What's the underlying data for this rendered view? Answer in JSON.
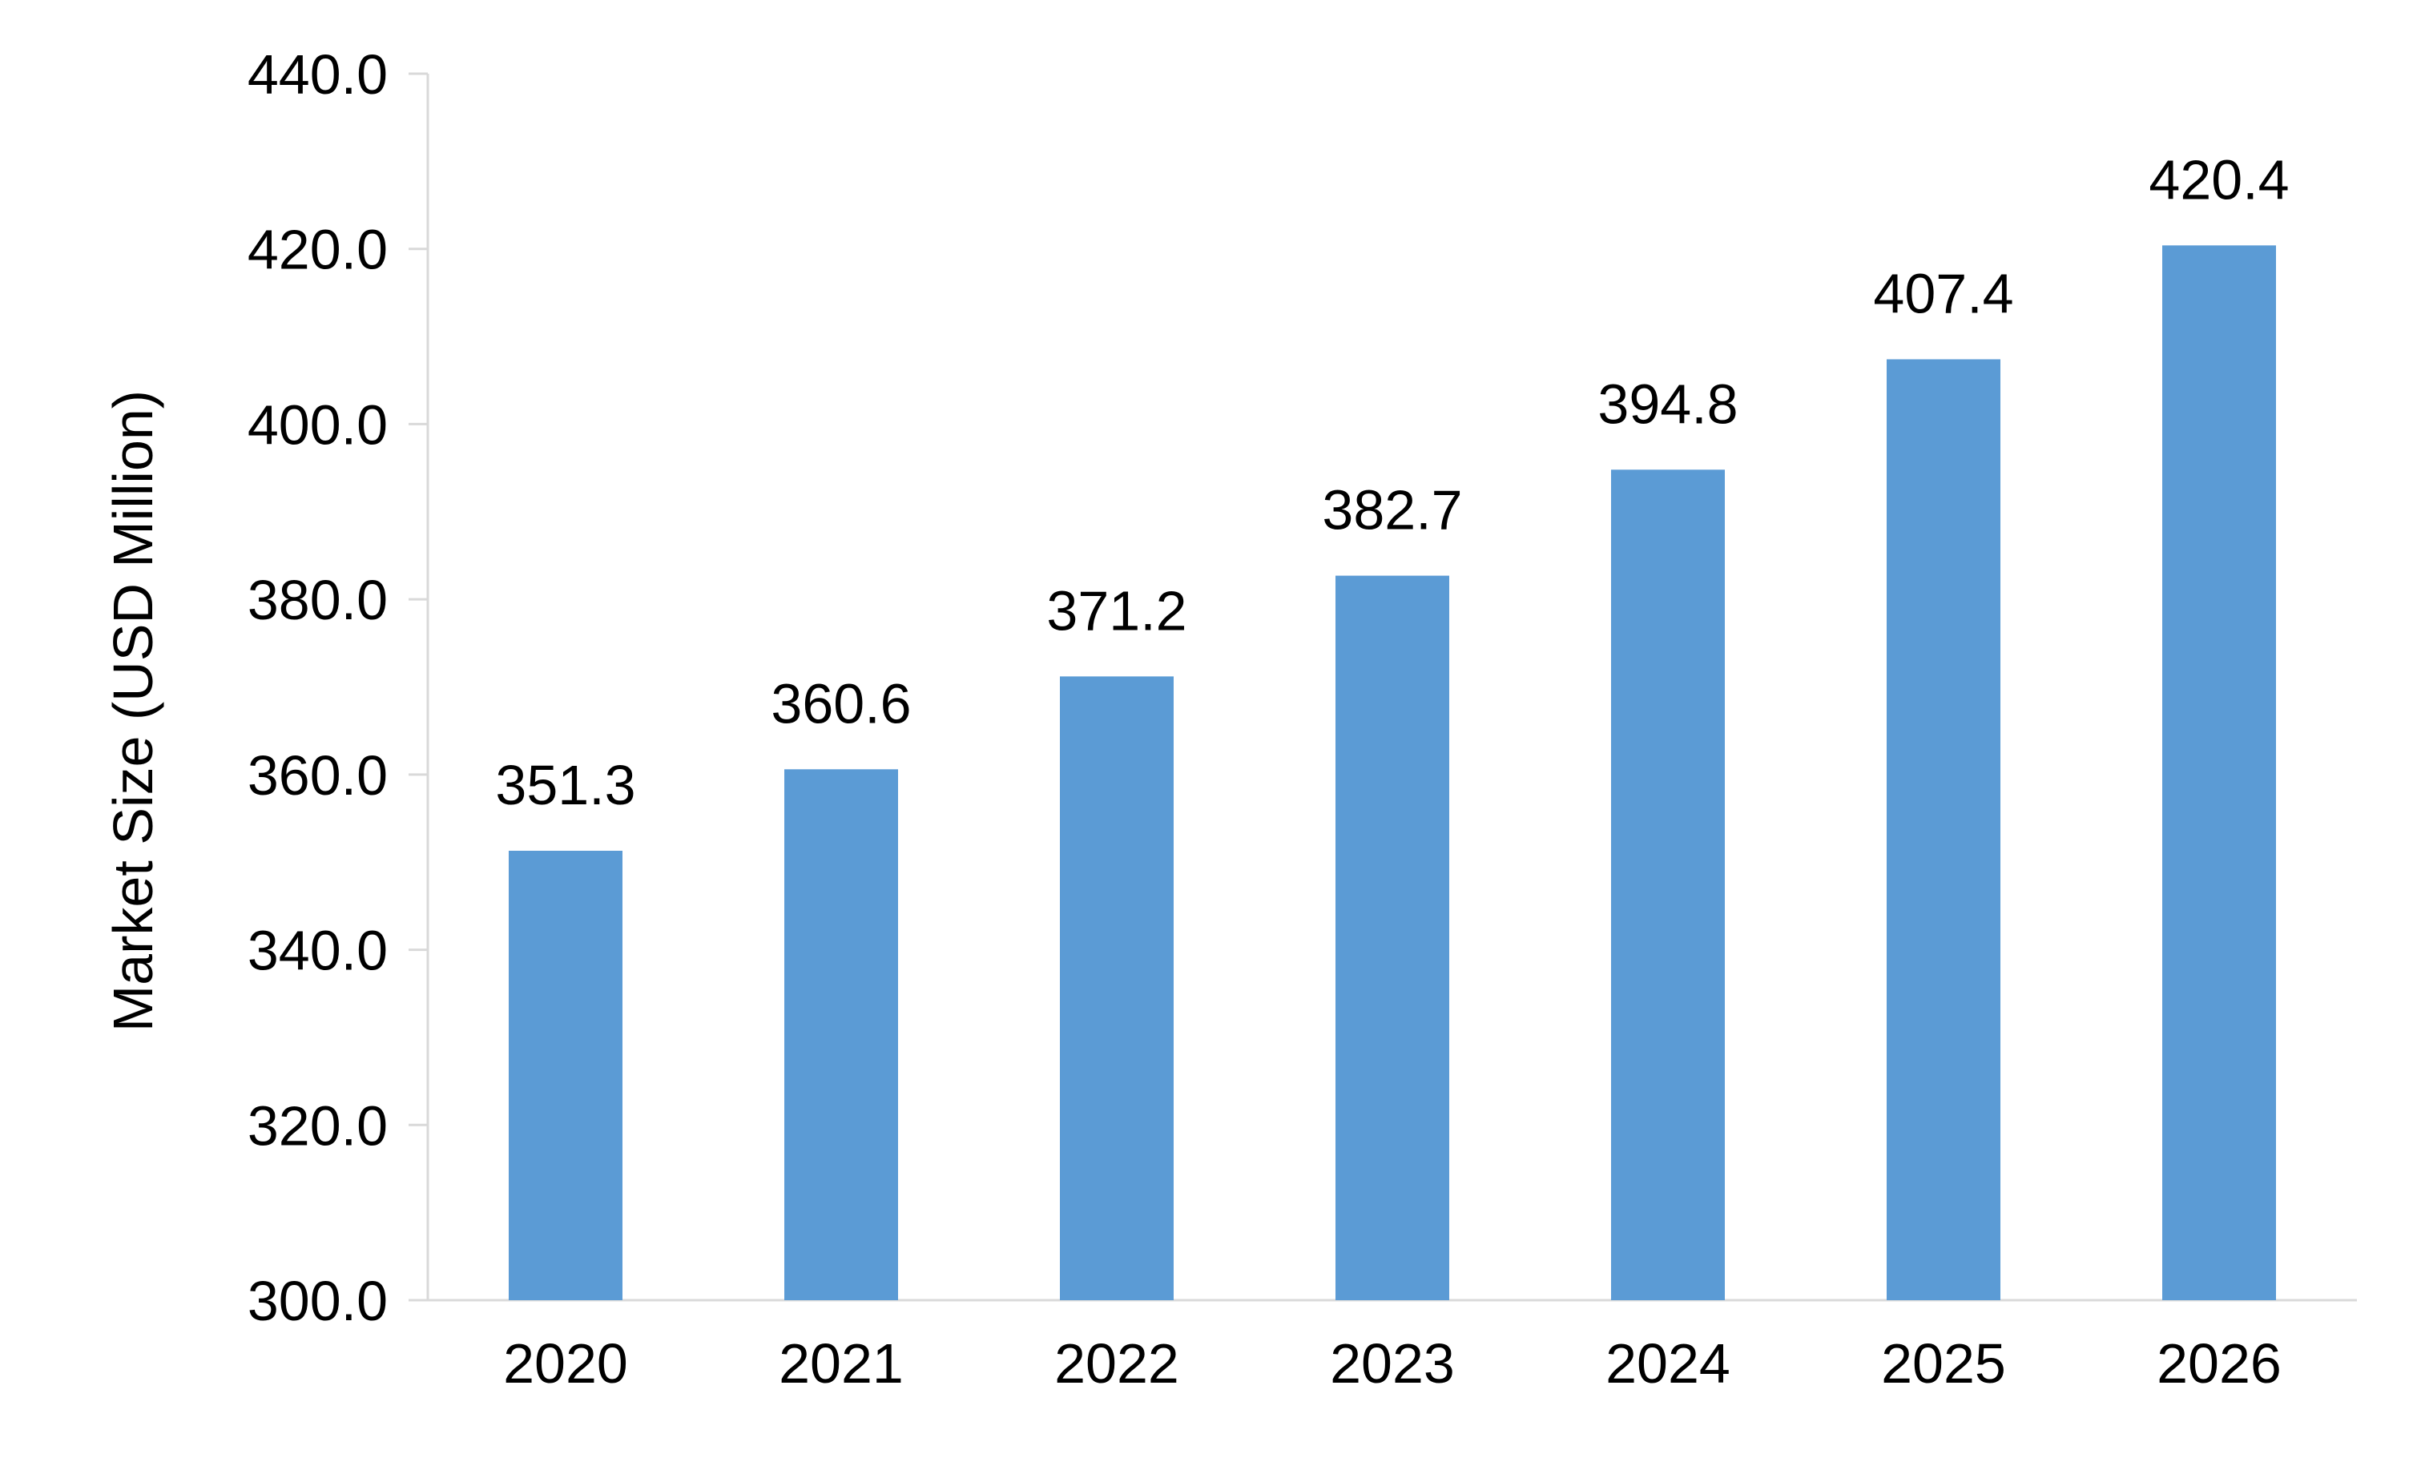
{
  "chart_data": {
    "type": "bar",
    "categories": [
      "2020",
      "2021",
      "2022",
      "2023",
      "2024",
      "2025",
      "2026"
    ],
    "values": [
      351.3,
      360.6,
      371.2,
      382.7,
      394.8,
      407.4,
      420.4
    ],
    "data_labels": [
      "351.3",
      "360.6",
      "371.2",
      "382.7",
      "394.8",
      "407.4",
      "420.4"
    ],
    "title": "",
    "xlabel": "",
    "ylabel": "Market Size (USD Million)",
    "ylim": [
      300,
      440
    ],
    "yticks": [
      "300.0",
      "320.0",
      "340.0",
      "360.0",
      "380.0",
      "400.0",
      "420.0",
      "440.0"
    ],
    "grid": false,
    "legend": "none",
    "colors": {
      "bar": "#5B9BD5",
      "axis": "#D9D9D9",
      "text": "#000000"
    }
  }
}
